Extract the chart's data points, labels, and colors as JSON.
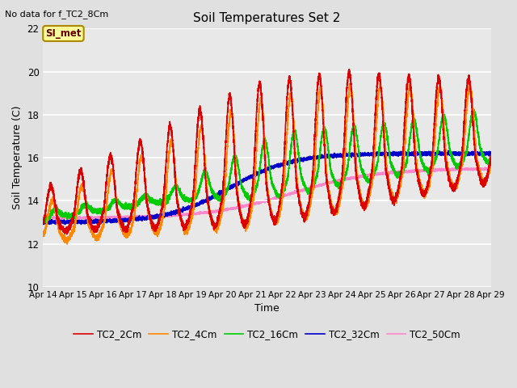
{
  "title": "Soil Temperatures Set 2",
  "subtitle": "No data for f_TC2_8Cm",
  "xlabel": "Time",
  "ylabel": "Soil Temperature (C)",
  "ylim": [
    10,
    22
  ],
  "xlim": [
    0,
    360
  ],
  "yticks": [
    10,
    12,
    14,
    16,
    18,
    20,
    22
  ],
  "xtick_labels": [
    "Apr 14",
    "Apr 15",
    "Apr 16",
    "Apr 17",
    "Apr 18",
    "Apr 19",
    "Apr 20",
    "Apr 21",
    "Apr 22",
    "Apr 23",
    "Apr 24",
    "Apr 25",
    "Apr 26",
    "Apr 27",
    "Apr 28",
    "Apr 29"
  ],
  "xtick_positions": [
    0,
    24,
    48,
    72,
    96,
    120,
    144,
    168,
    192,
    216,
    240,
    264,
    288,
    312,
    336,
    360
  ],
  "colors": {
    "TC2_2Cm": "#dd0000",
    "TC2_4Cm": "#ff8800",
    "TC2_16Cm": "#00cc00",
    "TC2_32Cm": "#0000cc",
    "TC2_50Cm": "#ff88cc"
  },
  "legend_entries": [
    "TC2_2Cm",
    "TC2_4Cm",
    "TC2_16Cm",
    "TC2_32Cm",
    "TC2_50Cm"
  ],
  "background_color": "#e0e0e0",
  "plot_bg_color": "#e8e8e8",
  "grid_color": "#ffffff",
  "annotation_text": "SI_met",
  "annotation_bg": "#ffff99",
  "annotation_border": "#aa8800"
}
